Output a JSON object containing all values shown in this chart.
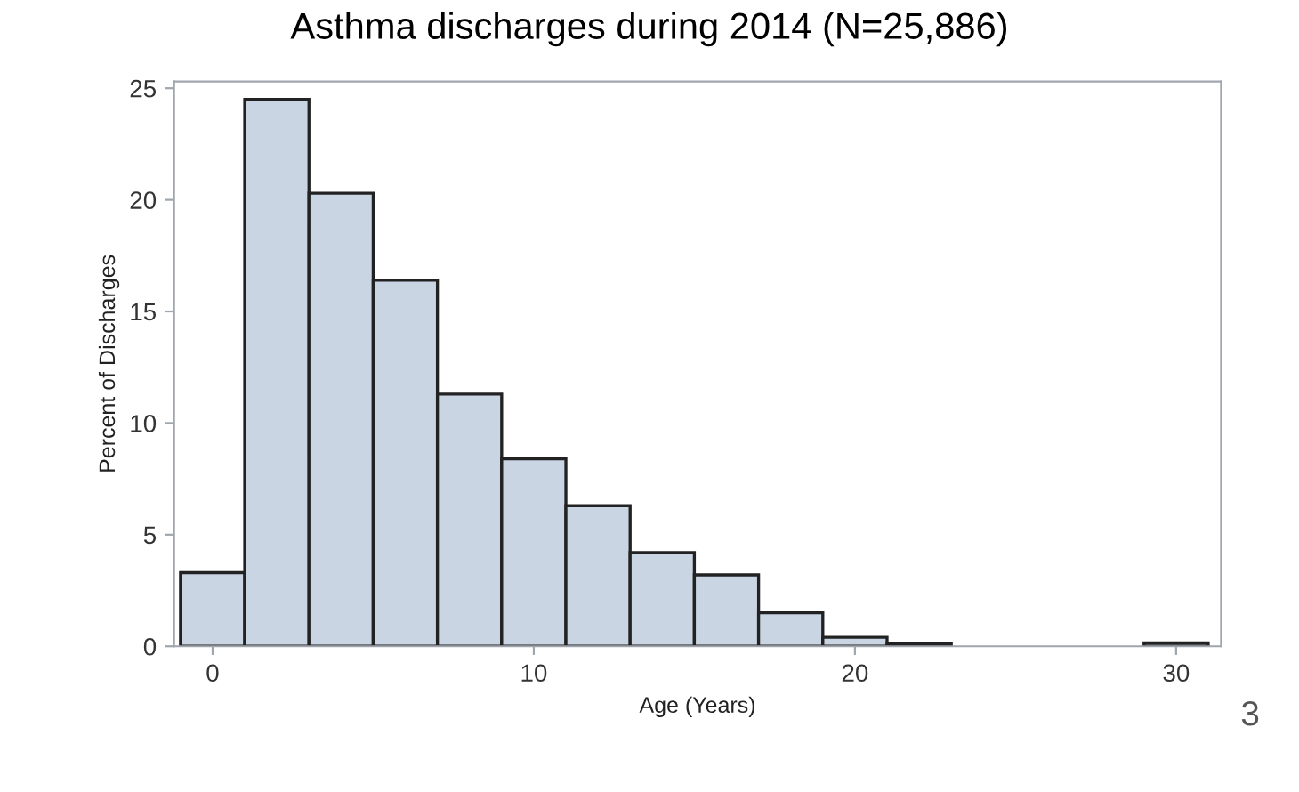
{
  "chart_data": {
    "type": "histogram",
    "title": "Asthma discharges during 2014 (N=25,886)",
    "xlabel": "Age (Years)",
    "ylabel": "Percent of Discharges",
    "bins": [
      -1,
      1,
      3,
      5,
      7,
      9,
      11,
      13,
      15,
      17,
      19,
      21,
      23,
      25,
      27,
      29,
      31
    ],
    "values": [
      3.3,
      24.5,
      20.3,
      16.4,
      11.3,
      8.4,
      6.3,
      4.2,
      3.2,
      1.5,
      0.4,
      0.1,
      null,
      null,
      null,
      0.15
    ],
    "color": "#cad5e4",
    "xlim": [
      -1.2,
      31.4
    ],
    "xticks": [
      0,
      10,
      20,
      30
    ],
    "ylim": [
      0,
      25.3
    ],
    "yticks": [
      0,
      5,
      10,
      15,
      20,
      25
    ],
    "grid": false,
    "annotations": [
      "3"
    ]
  }
}
